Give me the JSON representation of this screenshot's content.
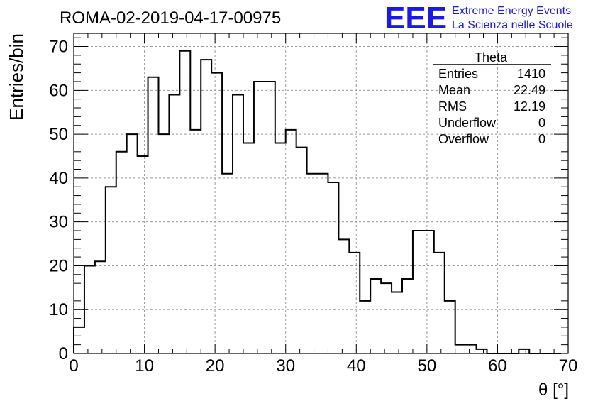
{
  "chart_data": {
    "type": "bar",
    "title": "ROMA-02-2019-04-17-00975",
    "xlabel": "θ [°]",
    "ylabel": "Entries/bin",
    "xlim": [
      0,
      70
    ],
    "ylim": [
      0,
      73
    ],
    "grid": true,
    "x_ticks": [
      "0",
      "10",
      "20",
      "30",
      "40",
      "50",
      "60",
      "70"
    ],
    "y_ticks": [
      "0",
      "10",
      "20",
      "30",
      "40",
      "50",
      "60",
      "70"
    ],
    "bin_edges_start": 0,
    "bin_width": 1.5,
    "values": [
      6,
      20,
      21,
      38,
      46,
      50,
      45,
      63,
      50,
      59,
      69,
      51,
      67,
      64,
      41,
      59,
      48,
      62,
      62,
      48,
      51,
      47,
      41,
      41,
      39,
      26,
      23,
      12,
      17,
      16,
      14,
      17,
      28,
      28,
      23,
      12,
      2,
      2,
      1,
      0,
      0,
      0,
      1,
      0,
      0,
      0
    ],
    "stats": {
      "title": "Theta",
      "rows": [
        {
          "label": "Entries",
          "value": "1410"
        },
        {
          "label": "Mean",
          "value": "22.49"
        },
        {
          "label": "RMS",
          "value": "12.19"
        },
        {
          "label": "Underflow",
          "value": "0"
        },
        {
          "label": "Overflow",
          "value": "0"
        }
      ]
    }
  },
  "logo": {
    "letters": "EEE",
    "line1": "Extreme Energy Events",
    "line2": "La Scienza nelle Scuole",
    "color": "#1a1ae6"
  }
}
